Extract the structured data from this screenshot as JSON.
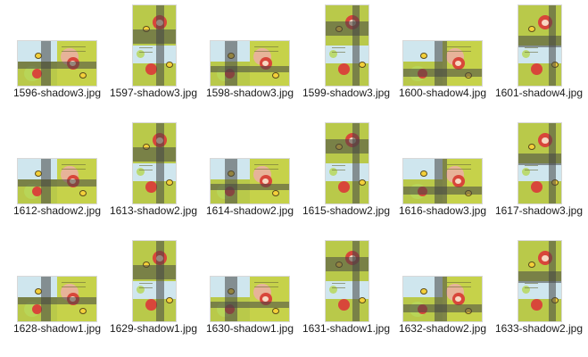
{
  "files": [
    {
      "label": "1596-shadow3.jpg",
      "orientation": "landscape"
    },
    {
      "label": "1597-shadow3.jpg",
      "orientation": "portrait"
    },
    {
      "label": "1598-shadow3.jpg",
      "orientation": "landscape"
    },
    {
      "label": "1599-shadow3.jpg",
      "orientation": "portrait"
    },
    {
      "label": "1600-shadow4.jpg",
      "orientation": "landscape"
    },
    {
      "label": "1601-shadow4.jpg",
      "orientation": "portrait"
    },
    {
      "label": "1612-shadow2.jpg",
      "orientation": "landscape"
    },
    {
      "label": "1613-shadow2.jpg",
      "orientation": "portrait"
    },
    {
      "label": "1614-shadow2.jpg",
      "orientation": "landscape"
    },
    {
      "label": "1615-shadow2.jpg",
      "orientation": "portrait"
    },
    {
      "label": "1616-shadow3.jpg",
      "orientation": "landscape"
    },
    {
      "label": "1617-shadow3.jpg",
      "orientation": "portrait"
    },
    {
      "label": "1628-shadow1.jpg",
      "orientation": "landscape"
    },
    {
      "label": "1629-shadow1.jpg",
      "orientation": "portrait"
    },
    {
      "label": "1630-shadow1.jpg",
      "orientation": "landscape"
    },
    {
      "label": "1631-shadow1.jpg",
      "orientation": "portrait"
    },
    {
      "label": "1632-shadow2.jpg",
      "orientation": "landscape"
    },
    {
      "label": "1633-shadow2.jpg",
      "orientation": "portrait"
    }
  ],
  "colors": {
    "page_green": "#b9c94a",
    "sky": "#cfe6ee",
    "shadow_band": "#464646",
    "hood_red": "#d8463a",
    "label_text": "#1a1a1a"
  }
}
